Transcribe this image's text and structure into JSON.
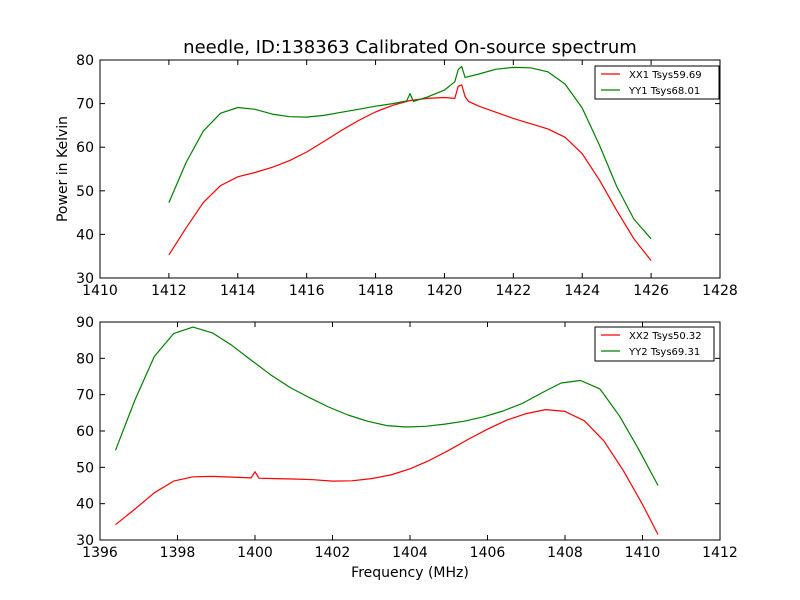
{
  "figure": {
    "title": "needle, ID:138363 Calibrated On-source spectrum",
    "ylabel": "Power in Kelvin",
    "xlabel": "Frequency (MHz)"
  },
  "chart_data": [
    {
      "type": "line",
      "title": "needle, ID:138363 Calibrated On-source spectrum",
      "xlabel": "",
      "ylabel": "Power in Kelvin",
      "xlim": [
        1410,
        1428
      ],
      "ylim": [
        30,
        80
      ],
      "xticks": [
        1410,
        1412,
        1414,
        1416,
        1418,
        1420,
        1422,
        1424,
        1426,
        1428
      ],
      "yticks": [
        30,
        40,
        50,
        60,
        70,
        80
      ],
      "grid": false,
      "legend_position": "top-right",
      "series": [
        {
          "name": "XX1 Tsys59.69",
          "color": "#ff0000",
          "x": [
            1412.0,
            1412.5,
            1413.0,
            1413.5,
            1414.0,
            1414.5,
            1415.0,
            1415.5,
            1416.0,
            1416.5,
            1417.0,
            1417.5,
            1418.0,
            1418.5,
            1419.0,
            1419.5,
            1420.0,
            1420.3,
            1420.4,
            1420.5,
            1420.6,
            1420.7,
            1421.0,
            1421.5,
            1422.0,
            1422.5,
            1423.0,
            1423.5,
            1424.0,
            1424.5,
            1425.0,
            1425.5,
            1426.0
          ],
          "y": [
            35.3,
            41.5,
            47.3,
            51.2,
            53.2,
            54.2,
            55.4,
            56.9,
            58.9,
            61.3,
            63.8,
            66.1,
            68.1,
            69.6,
            70.7,
            71.2,
            71.4,
            71.2,
            74.0,
            74.3,
            71.6,
            70.5,
            69.4,
            68.0,
            66.6,
            65.4,
            64.2,
            62.3,
            58.5,
            52.5,
            45.5,
            39.0,
            34.0
          ]
        },
        {
          "name": "YY1 Tsys68.01",
          "color": "#008000",
          "x": [
            1412.0,
            1412.5,
            1413.0,
            1413.5,
            1414.0,
            1414.5,
            1415.0,
            1415.5,
            1416.0,
            1416.5,
            1417.0,
            1417.5,
            1418.0,
            1418.5,
            1418.9,
            1419.0,
            1419.1,
            1419.5,
            1420.0,
            1420.3,
            1420.4,
            1420.5,
            1420.6,
            1421.0,
            1421.5,
            1422.0,
            1422.5,
            1423.0,
            1423.5,
            1424.0,
            1424.5,
            1425.0,
            1425.5,
            1426.0
          ],
          "y": [
            47.3,
            56.5,
            63.7,
            67.8,
            69.1,
            68.7,
            67.6,
            67.0,
            66.9,
            67.3,
            68.0,
            68.7,
            69.4,
            70.0,
            70.6,
            72.3,
            70.5,
            71.5,
            73.1,
            75.0,
            77.8,
            78.5,
            76.0,
            76.8,
            77.9,
            78.3,
            78.2,
            77.3,
            74.5,
            69.0,
            60.5,
            51.0,
            43.5,
            39.0
          ]
        }
      ]
    },
    {
      "type": "line",
      "title": "",
      "xlabel": "Frequency (MHz)",
      "ylabel": "",
      "xlim": [
        1396,
        1412
      ],
      "ylim": [
        30,
        90
      ],
      "xticks": [
        1396,
        1398,
        1400,
        1402,
        1404,
        1406,
        1408,
        1410,
        1412
      ],
      "yticks": [
        30,
        40,
        50,
        60,
        70,
        80,
        90
      ],
      "grid": false,
      "legend_position": "top-right",
      "series": [
        {
          "name": "XX2 Tsys50.32",
          "color": "#ff0000",
          "x": [
            1396.4,
            1396.9,
            1397.4,
            1397.9,
            1398.4,
            1398.9,
            1399.4,
            1399.9,
            1400.0,
            1400.1,
            1400.5,
            1401.0,
            1401.5,
            1402.0,
            1402.5,
            1403.0,
            1403.5,
            1404.0,
            1404.5,
            1405.0,
            1405.5,
            1406.0,
            1406.5,
            1407.0,
            1407.5,
            1408.0,
            1408.5,
            1409.0,
            1409.5,
            1410.0,
            1410.4
          ],
          "y": [
            34.2,
            38.5,
            43.0,
            46.2,
            47.4,
            47.5,
            47.3,
            47.1,
            48.8,
            47.0,
            46.9,
            46.8,
            46.6,
            46.2,
            46.3,
            46.9,
            47.9,
            49.6,
            51.9,
            54.7,
            57.7,
            60.5,
            63.0,
            64.8,
            65.9,
            65.4,
            62.8,
            57.3,
            49.2,
            39.8,
            31.5
          ]
        },
        {
          "name": "YY2 Tsys69.31",
          "color": "#008000",
          "x": [
            1396.4,
            1396.9,
            1397.4,
            1397.9,
            1398.4,
            1398.9,
            1399.4,
            1399.9,
            1400.4,
            1400.9,
            1401.4,
            1401.9,
            1402.4,
            1402.9,
            1403.4,
            1403.9,
            1404.4,
            1404.9,
            1405.4,
            1405.9,
            1406.4,
            1406.9,
            1407.4,
            1407.9,
            1408.4,
            1408.9,
            1409.4,
            1409.9,
            1410.4
          ],
          "y": [
            54.7,
            68.5,
            80.5,
            86.8,
            88.6,
            87.0,
            83.6,
            79.5,
            75.5,
            72.0,
            69.2,
            66.6,
            64.4,
            62.7,
            61.5,
            61.1,
            61.3,
            61.9,
            62.7,
            63.9,
            65.5,
            67.6,
            70.5,
            73.2,
            73.9,
            71.6,
            64.2,
            55.0,
            45.0
          ]
        }
      ]
    }
  ]
}
